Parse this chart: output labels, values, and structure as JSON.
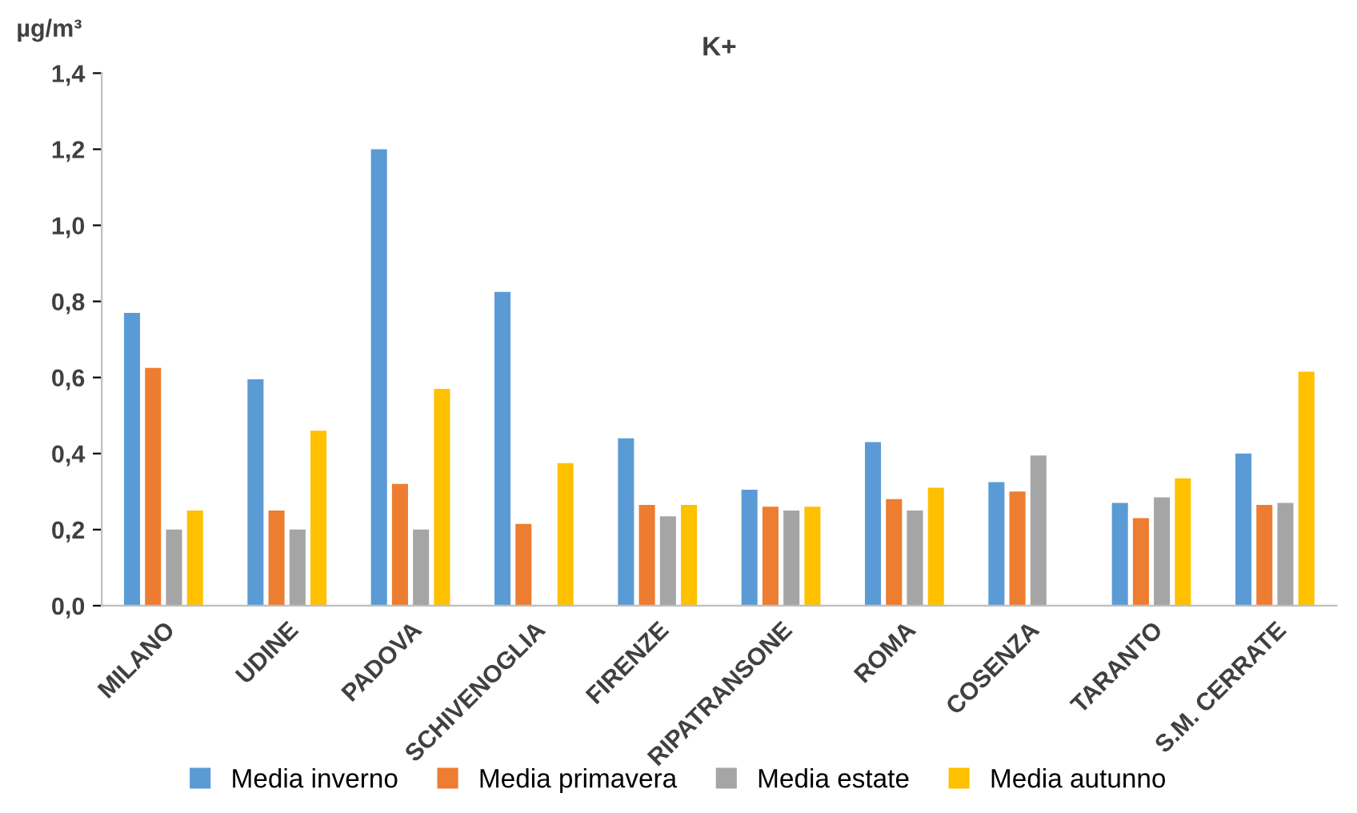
{
  "chart_data": {
    "type": "bar",
    "title": "K+",
    "ylabel": "µg/m³",
    "categories": [
      "MILANO",
      "UDINE",
      "PADOVA",
      "SCHIVENOGLIA",
      "FIRENZE",
      "RIPATRANSONE",
      "ROMA",
      "COSENZA",
      "TARANTO",
      "S.M. CERRATE"
    ],
    "series": [
      {
        "name": "Media inverno",
        "color": "#5b9bd5",
        "values": [
          0.77,
          0.595,
          1.2,
          0.825,
          0.44,
          0.305,
          0.43,
          0.325,
          0.27,
          0.4
        ]
      },
      {
        "name": "Media primavera",
        "color": "#ed7d31",
        "values": [
          0.625,
          0.25,
          0.32,
          0.215,
          0.265,
          0.26,
          0.28,
          0.3,
          0.23,
          0.265
        ]
      },
      {
        "name": "Media estate",
        "color": "#a5a5a5",
        "values": [
          0.2,
          0.2,
          0.2,
          null,
          0.235,
          0.25,
          0.25,
          0.395,
          0.285,
          0.27
        ]
      },
      {
        "name": "Media autunno",
        "color": "#ffc000",
        "values": [
          0.25,
          0.46,
          0.57,
          0.375,
          0.265,
          0.26,
          0.31,
          null,
          0.335,
          0.615
        ]
      }
    ],
    "ylim": [
      0,
      1.4
    ],
    "yticks": [
      {
        "value": 0,
        "label": "0,0"
      },
      {
        "value": 0.2,
        "label": "0,2"
      },
      {
        "value": 0.4,
        "label": "0,4"
      },
      {
        "value": 0.6,
        "label": "0,6"
      },
      {
        "value": 0.8,
        "label": "0,8"
      },
      {
        "value": 1.0,
        "label": "1,0"
      },
      {
        "value": 1.2,
        "label": "1,2"
      },
      {
        "value": 1.4,
        "label": "1,4"
      }
    ],
    "grid": false,
    "legend": "bottom"
  }
}
